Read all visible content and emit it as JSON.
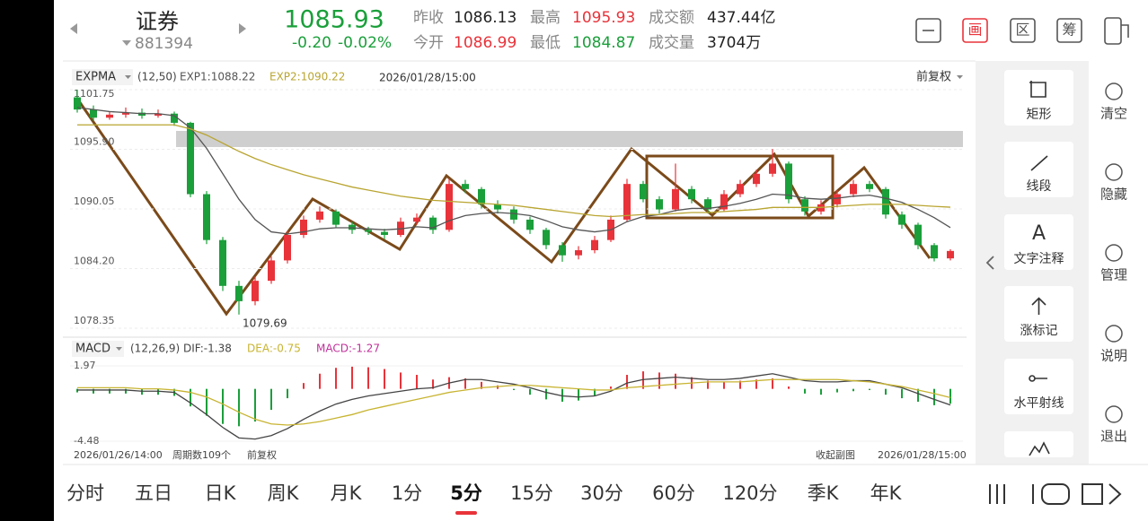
{
  "header": {
    "name": "证券",
    "code": "881394",
    "price": "1085.93",
    "change": "-0.20",
    "change_pct": "-0.02%",
    "stats": [
      {
        "label": "昨收",
        "value": "1086.13",
        "tone": "flat"
      },
      {
        "label": "今开",
        "value": "1086.99",
        "tone": "up"
      },
      {
        "label": "最高",
        "value": "1095.93",
        "tone": "up"
      },
      {
        "label": "最低",
        "value": "1084.87",
        "tone": "down"
      },
      {
        "label": "成交额",
        "value": "437.44亿",
        "tone": "flat"
      },
      {
        "label": "成交量",
        "value": "3704万",
        "tone": "flat"
      }
    ],
    "icons": [
      "画",
      "区",
      "筹"
    ]
  },
  "chart_data": [
    {
      "type": "candlestick",
      "indicator": "EXPMA",
      "params": "(12,50)",
      "exp1_label": "EXP1:1088.22",
      "exp2_label": "EXP2:1090.22",
      "time": "2026/01/28/15:00",
      "adjust": "前复权",
      "low_label": "1079.69",
      "up_color": "#e8333a",
      "down_color": "#1a9f3a",
      "exp1_color": "#555555",
      "exp2_color": "#b9a531",
      "ylim": [
        1078.35,
        1101.75
      ],
      "yticks": [
        1078.35,
        {
          "value": 1084.2,
          "label": "1084.20"
        },
        1090.05,
        {
          "value": 1095.9,
          "label": "1095.90"
        },
        1101.75
      ],
      "candles": [
        [
          1101.0,
          1101.75,
          1099.5,
          1099.8
        ],
        [
          1099.8,
          1100.2,
          1098.7,
          1099.0
        ],
        [
          1099.0,
          1099.6,
          1098.8,
          1099.3
        ],
        [
          1099.3,
          1100.0,
          1099.0,
          1099.5
        ],
        [
          1099.5,
          1099.9,
          1098.9,
          1099.2
        ],
        [
          1099.2,
          1099.8,
          1099.0,
          1099.4
        ],
        [
          1099.4,
          1099.6,
          1098.2,
          1098.5
        ],
        [
          1098.5,
          1098.6,
          1091.2,
          1091.5
        ],
        [
          1091.5,
          1091.8,
          1086.6,
          1087.0
        ],
        [
          1087.0,
          1087.3,
          1082.0,
          1082.5
        ],
        [
          1082.5,
          1083.0,
          1079.69,
          1081.0
        ],
        [
          1081.0,
          1083.4,
          1080.6,
          1083.0
        ],
        [
          1083.0,
          1085.4,
          1082.7,
          1085.0
        ],
        [
          1085.0,
          1087.9,
          1084.7,
          1087.5
        ],
        [
          1087.5,
          1089.4,
          1087.2,
          1089.0
        ],
        [
          1089.0,
          1090.3,
          1088.7,
          1089.8
        ],
        [
          1089.8,
          1090.0,
          1088.2,
          1088.5
        ],
        [
          1088.5,
          1088.8,
          1087.6,
          1088.0
        ],
        [
          1088.0,
          1088.3,
          1087.5,
          1087.8
        ],
        [
          1087.8,
          1088.1,
          1087.1,
          1087.5
        ],
        [
          1087.5,
          1089.2,
          1087.3,
          1088.8
        ],
        [
          1088.8,
          1089.6,
          1088.5,
          1089.2
        ],
        [
          1089.2,
          1089.4,
          1087.6,
          1088.0
        ],
        [
          1088.0,
          1093.0,
          1087.8,
          1092.5
        ],
        [
          1092.5,
          1092.9,
          1091.6,
          1092.0
        ],
        [
          1092.0,
          1092.2,
          1090.1,
          1090.5
        ],
        [
          1090.5,
          1090.9,
          1089.6,
          1090.0
        ],
        [
          1090.0,
          1090.3,
          1088.6,
          1089.0
        ],
        [
          1089.0,
          1089.3,
          1087.6,
          1088.0
        ],
        [
          1088.0,
          1088.2,
          1086.1,
          1086.5
        ],
        [
          1086.5,
          1086.8,
          1084.87,
          1085.5
        ],
        [
          1085.5,
          1086.4,
          1085.1,
          1086.0
        ],
        [
          1086.0,
          1087.4,
          1085.7,
          1087.0
        ],
        [
          1087.0,
          1089.4,
          1086.8,
          1089.0
        ],
        [
          1089.0,
          1093.0,
          1088.8,
          1092.5
        ],
        [
          1092.5,
          1092.8,
          1090.7,
          1091.0
        ],
        [
          1091.0,
          1091.3,
          1089.6,
          1090.0
        ],
        [
          1090.0,
          1094.5,
          1089.8,
          1092.0
        ],
        [
          1092.0,
          1092.3,
          1090.6,
          1091.0
        ],
        [
          1091.0,
          1091.2,
          1089.6,
          1090.0
        ],
        [
          1090.0,
          1091.9,
          1089.8,
          1091.5
        ],
        [
          1091.5,
          1092.9,
          1091.2,
          1092.5
        ],
        [
          1092.5,
          1093.9,
          1092.2,
          1093.5
        ],
        [
          1093.5,
          1095.93,
          1093.2,
          1094.5
        ],
        [
          1094.5,
          1094.7,
          1090.6,
          1091.0
        ],
        [
          1091.0,
          1091.3,
          1089.4,
          1089.8
        ],
        [
          1089.8,
          1090.9,
          1089.5,
          1090.5
        ],
        [
          1090.5,
          1091.9,
          1090.2,
          1091.5
        ],
        [
          1091.5,
          1092.9,
          1091.2,
          1092.5
        ],
        [
          1092.5,
          1092.8,
          1091.7,
          1092.0
        ],
        [
          1092.0,
          1092.2,
          1089.1,
          1089.5
        ],
        [
          1089.5,
          1089.8,
          1088.1,
          1088.5
        ],
        [
          1088.5,
          1088.7,
          1086.1,
          1086.5
        ],
        [
          1086.5,
          1086.7,
          1084.9,
          1085.2
        ],
        [
          1085.2,
          1086.1,
          1085.0,
          1085.93
        ]
      ],
      "exp1": [
        1100.0,
        1099.8,
        1099.6,
        1099.5,
        1099.4,
        1099.4,
        1099.2,
        1098.0,
        1096.0,
        1093.5,
        1091.0,
        1089.0,
        1087.8,
        1087.6,
        1087.8,
        1088.1,
        1088.2,
        1088.2,
        1088.1,
        1088.0,
        1088.1,
        1088.3,
        1088.2,
        1088.9,
        1089.4,
        1089.6,
        1089.7,
        1089.6,
        1089.4,
        1088.9,
        1088.3,
        1088.0,
        1087.8,
        1088.0,
        1088.8,
        1089.3,
        1089.5,
        1089.9,
        1090.1,
        1090.1,
        1090.3,
        1090.6,
        1091.0,
        1091.5,
        1091.4,
        1091.1,
        1091.0,
        1091.1,
        1091.3,
        1091.4,
        1091.1,
        1090.7,
        1090.0,
        1089.2,
        1088.22
      ],
      "exp2": [
        1098.3,
        1098.3,
        1098.3,
        1098.3,
        1098.3,
        1098.3,
        1098.3,
        1097.9,
        1097.3,
        1096.5,
        1095.7,
        1095.0,
        1094.4,
        1093.9,
        1093.4,
        1093.0,
        1092.6,
        1092.2,
        1091.9,
        1091.6,
        1091.3,
        1091.1,
        1090.9,
        1090.8,
        1090.7,
        1090.6,
        1090.5,
        1090.4,
        1090.2,
        1090.0,
        1089.8,
        1089.6,
        1089.4,
        1089.3,
        1089.4,
        1089.5,
        1089.5,
        1089.6,
        1089.7,
        1089.7,
        1089.8,
        1089.9,
        1090.0,
        1090.2,
        1090.2,
        1090.2,
        1090.2,
        1090.3,
        1090.4,
        1090.5,
        1090.5,
        1090.5,
        1090.4,
        1090.3,
        1090.22
      ]
    },
    {
      "type": "macd",
      "indicator": "MACD",
      "params": "(12,26,9)",
      "dif_label": "DIF:-1.38",
      "dea_label": "DEA:-0.75",
      "macd_label": "MACD:-1.27",
      "dif_color": "#444444",
      "dea_color": "#c8b432",
      "label_color": "#c0309a",
      "ylim": [
        -4.48,
        1.97
      ],
      "yticks": [
        -4.48,
        1.97
      ],
      "hist": [
        -0.3,
        -0.4,
        -0.4,
        -0.4,
        -0.5,
        -0.5,
        -0.6,
        -1.5,
        -2.3,
        -3.0,
        -3.2,
        -2.8,
        -1.8,
        -0.8,
        0.5,
        1.3,
        1.8,
        1.9,
        1.85,
        1.7,
        1.4,
        1.2,
        0.8,
        1.0,
        0.9,
        0.6,
        0.3,
        -0.1,
        -0.5,
        -0.9,
        -1.1,
        -1.0,
        -0.6,
        0.2,
        1.2,
        1.5,
        1.4,
        1.3,
        1.0,
        0.7,
        0.6,
        0.7,
        0.8,
        0.9,
        0.2,
        -0.4,
        -0.5,
        -0.3,
        -0.2,
        -0.1,
        -0.5,
        -0.8,
        -1.1,
        -1.4,
        -1.27
      ],
      "dif": [
        -0.1,
        -0.1,
        -0.1,
        -0.1,
        -0.2,
        -0.2,
        -0.3,
        -1.2,
        -2.2,
        -3.3,
        -4.2,
        -4.3,
        -4.0,
        -3.4,
        -2.6,
        -1.9,
        -1.3,
        -0.9,
        -0.6,
        -0.4,
        -0.2,
        0.0,
        0.1,
        0.5,
        0.8,
        0.8,
        0.6,
        0.4,
        0.1,
        -0.3,
        -0.6,
        -0.7,
        -0.6,
        -0.2,
        0.5,
        0.8,
        0.9,
        1.0,
        0.9,
        0.8,
        0.8,
        0.9,
        1.1,
        1.3,
        1.0,
        0.7,
        0.6,
        0.6,
        0.7,
        0.7,
        0.4,
        0.1,
        -0.4,
        -0.9,
        -1.38
      ],
      "dea": [
        0.1,
        0.1,
        0.1,
        0.1,
        0.0,
        0.0,
        -0.1,
        -0.3,
        -0.7,
        -1.3,
        -2.0,
        -2.6,
        -3.0,
        -3.1,
        -3.0,
        -2.8,
        -2.5,
        -2.2,
        -1.8,
        -1.5,
        -1.2,
        -0.9,
        -0.6,
        -0.3,
        -0.1,
        0.1,
        0.2,
        0.3,
        0.3,
        0.2,
        0.1,
        0.0,
        -0.1,
        -0.1,
        0.1,
        0.2,
        0.3,
        0.4,
        0.5,
        0.6,
        0.6,
        0.6,
        0.7,
        0.8,
        0.8,
        0.8,
        0.8,
        0.8,
        0.7,
        0.6,
        0.4,
        0.2,
        -0.1,
        -0.4,
        -0.75
      ]
    }
  ],
  "footer": {
    "start": "2026/01/26/14:00",
    "count": "周期数109个",
    "adjust": "前复权",
    "collapse": "收起副图",
    "end": "2026/01/28/15:00"
  },
  "tools": [
    {
      "label": "矩形"
    },
    {
      "label": "线段"
    },
    {
      "label": "文字注释",
      "icon": "A"
    },
    {
      "label": "涨标记"
    },
    {
      "label": "水平射线"
    }
  ],
  "side": [
    "清空",
    "隐藏",
    "管理",
    "说明",
    "退出"
  ],
  "tabs": [
    "分时",
    "五日",
    "日K",
    "周K",
    "月K",
    "1分",
    "5分",
    "15分",
    "30分",
    "60分",
    "120分",
    "季K",
    "年K"
  ],
  "active_tab": 6
}
